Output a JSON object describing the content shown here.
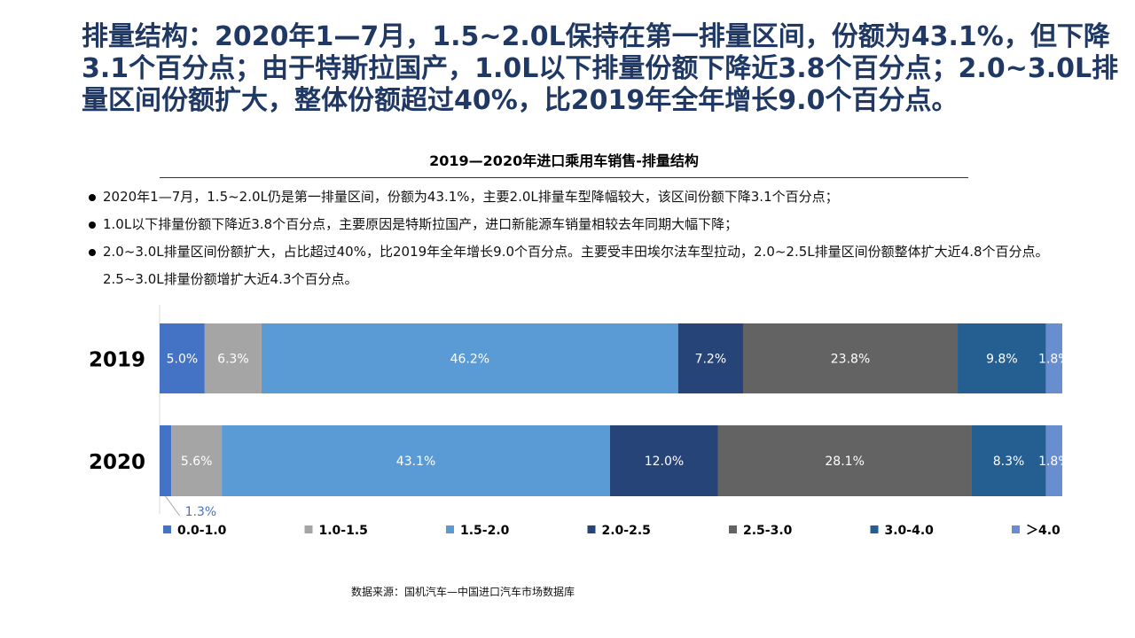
{
  "headline": "排量结构：2020年1—7月，1.5~2.0L保持在第一排量区间，份额为43.1%，但下降3.1个百分点；由于特斯拉国产，1.0L以下排量份额下降近3.8个百分点；2.0~3.0L排量区间份额扩大，整体份额超过40%，比2019年全年增长9.0个百分点。",
  "bullets": [
    "2020年1—7月，1.5~2.0L仍是第一排量区间，份额为43.1%，主要2.0L排量车型降幅较大，该区间份额下降3.1个百分点；",
    "1.0L以下排量份额下降近3.8个百分点，主要原因是特斯拉国产，进口新能源车销量相较去年同期大幅下降；",
    "2.0~3.0L排量区间份额扩大，占比超过40%，比2019年全年增长9.0个百分点。主要受丰田埃尔法车型拉动，2.0~2.5L排量区间份额整体扩大近4.8个百分点。2.5~3.0L排量份额增扩大近4.3个百分点。"
  ],
  "source": "数据来源：国机汽车—中国进口汽车市场数据库",
  "chart_data": {
    "type": "bar",
    "orientation": "horizontal",
    "stacked": true,
    "percent_stacked": true,
    "title": "2019—2020年进口乘用车销售-排量结构",
    "categories": [
      "2019",
      "2020"
    ],
    "series": [
      {
        "name": "0.0-1.0",
        "color": "#4472c4",
        "values": [
          5.0,
          1.3
        ],
        "labels": [
          "5.0%",
          "1.3%"
        ]
      },
      {
        "name": "1.0-1.5",
        "color": "#a5a5a5",
        "values": [
          6.3,
          5.6
        ],
        "labels": [
          "6.3%",
          "5.6%"
        ]
      },
      {
        "name": "1.5-2.0",
        "color": "#5b9bd5",
        "values": [
          46.2,
          43.1
        ],
        "labels": [
          "46.2%",
          "43.1%"
        ]
      },
      {
        "name": "2.0-2.5",
        "color": "#264478",
        "values": [
          7.2,
          12.0
        ],
        "labels": [
          "7.2%",
          "12.0%"
        ]
      },
      {
        "name": "2.5-3.0",
        "color": "#636363",
        "values": [
          23.8,
          28.1
        ],
        "labels": [
          "23.8%",
          "28.1%"
        ]
      },
      {
        "name": "3.0-4.0",
        "color": "#255e91",
        "values": [
          9.8,
          8.3
        ],
        "labels": [
          "9.8%",
          "8.3%"
        ]
      },
      {
        "name": "＞4.0",
        "color": "#698ed0",
        "values": [
          1.8,
          1.8
        ],
        "labels": [
          "1.8%",
          "1.8%"
        ]
      }
    ],
    "legend_position": "bottom",
    "grid": false
  }
}
